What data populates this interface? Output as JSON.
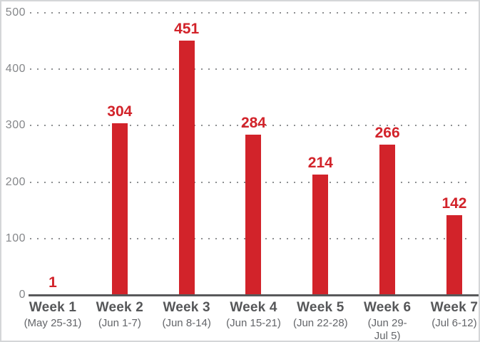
{
  "chart_data": {
    "type": "bar",
    "title": "",
    "categories": [
      "Week 1",
      "Week 2",
      "Week 3",
      "Week 4",
      "Week 5",
      "Week 6",
      "Week 7"
    ],
    "category_sublabels": [
      "(May 25-31)",
      "(Jun 1-7)",
      "(Jun 8-14)",
      "(Jun 15-21)",
      "(Jun 22-28)",
      "(Jun 29-\nJul 5)",
      "(Jul 6-12)"
    ],
    "values": [
      1,
      304,
      451,
      284,
      214,
      266,
      142
    ],
    "ylim": [
      0,
      500
    ],
    "yticks": [
      0,
      100,
      200,
      300,
      400,
      500
    ],
    "grid": "horizontal-dotted",
    "legend": "none",
    "bar_color": "#D2232A",
    "value_label_color": "#D2232A",
    "ytick_label_color": "#85878A",
    "category_label_color": "#565759",
    "sublabel_color": "#636569",
    "axis_line_color": "#58595B",
    "gridline_color": "#8E9092"
  }
}
